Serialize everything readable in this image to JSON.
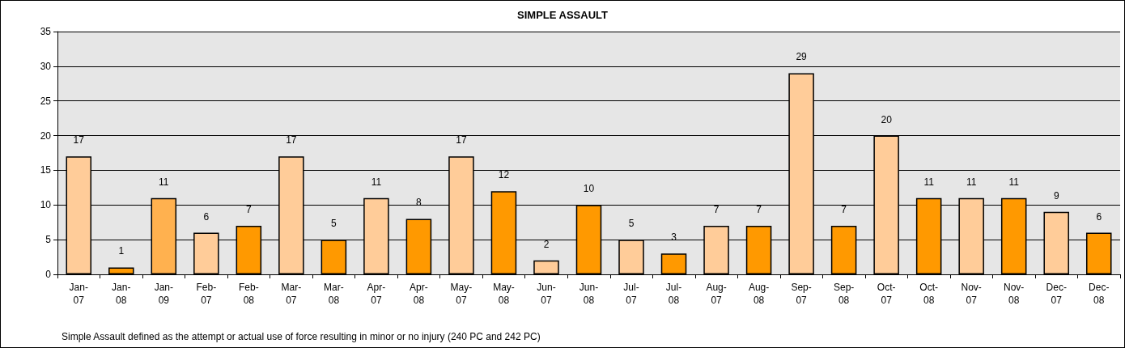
{
  "chart_data": {
    "type": "bar",
    "title": "SIMPLE ASSAULT",
    "categories": [
      "Jan-07",
      "Jan-08",
      "Jan-09",
      "Feb-07",
      "Feb-08",
      "Mar-07",
      "Mar-08",
      "Apr-07",
      "Apr-08",
      "May-07",
      "May-08",
      "Jun-07",
      "Jun-08",
      "Jul-07",
      "Jul-08",
      "Aug-07",
      "Aug-08",
      "Sep-07",
      "Sep-08",
      "Oct-07",
      "Oct-08",
      "Nov-07",
      "Nov-08",
      "Dec-07",
      "Dec-08"
    ],
    "values": [
      17,
      1,
      11,
      6,
      7,
      17,
      5,
      11,
      8,
      17,
      12,
      2,
      10,
      5,
      3,
      7,
      7,
      29,
      7,
      20,
      11,
      11,
      11,
      9,
      6
    ],
    "colors": [
      "#ffcc99",
      "#ff9900",
      "#ffb14f",
      "#ffcc99",
      "#ff9900",
      "#ffcc99",
      "#ff9900",
      "#ffcc99",
      "#ff9900",
      "#ffcc99",
      "#ff9900",
      "#ffcc99",
      "#ff9900",
      "#ffcc99",
      "#ff9900",
      "#ffcc99",
      "#ff9900",
      "#ffcc99",
      "#ff9900",
      "#ffcc99",
      "#ff9900",
      "#ffcc99",
      "#ff9900",
      "#ffcc99",
      "#ff9900"
    ],
    "ylim": [
      0,
      35
    ],
    "yticks": [
      0,
      5,
      10,
      15,
      20,
      25,
      30,
      35
    ],
    "grid": "y",
    "data_labels": true,
    "annotations": [
      "Simple Assault defined as the attempt or actual use of force resulting in minor or no injury (240 PC and 242 PC)"
    ]
  }
}
